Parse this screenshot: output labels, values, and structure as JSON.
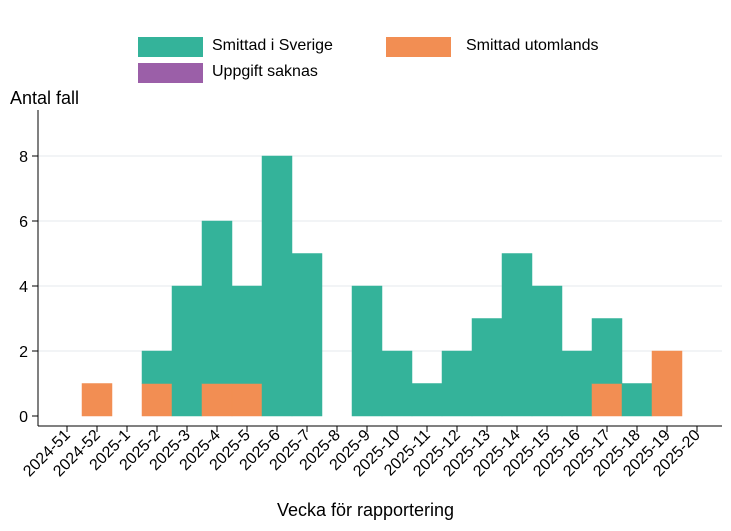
{
  "chart_data": {
    "type": "bar",
    "stacked": true,
    "title": "",
    "xlabel": "Vecka för rapportering",
    "ylabel": "Antal fall",
    "ylim": [
      0,
      9
    ],
    "yticks": [
      0,
      2,
      4,
      6,
      8
    ],
    "grid": true,
    "legend_position": "top",
    "categories": [
      "2024-51",
      "2024-52",
      "2025-1",
      "2025-2",
      "2025-3",
      "2025-4",
      "2025-5",
      "2025-6",
      "2025-7",
      "2025-8",
      "2025-9",
      "2025-10",
      "2025-11",
      "2025-12",
      "2025-13",
      "2025-14",
      "2025-15",
      "2025-16",
      "2025-17",
      "2025-18",
      "2025-19",
      "2025-20"
    ],
    "series": [
      {
        "name": "Smittad utomlands",
        "color": "#f28e53",
        "values": [
          0,
          1,
          0,
          1,
          0,
          1,
          1,
          0,
          0,
          0,
          0,
          0,
          0,
          0,
          0,
          0,
          0,
          0,
          1,
          0,
          2,
          0
        ]
      },
      {
        "name": "Smittad i Sverige",
        "color": "#34b39a",
        "values": [
          0,
          0,
          0,
          1,
          4,
          5,
          3,
          8,
          5,
          0,
          4,
          2,
          1,
          2,
          3,
          5,
          4,
          2,
          2,
          1,
          0,
          0
        ]
      },
      {
        "name": "Uppgift saknas",
        "color": "#9b5fa8",
        "values": [
          0,
          0,
          0,
          0,
          0,
          0,
          0,
          0,
          0,
          0,
          0,
          0,
          0,
          0,
          0,
          0,
          0,
          0,
          0,
          0,
          0,
          0
        ]
      }
    ]
  },
  "legend": {
    "items": [
      {
        "label": "Smittad i Sverige",
        "color": "#34b39a"
      },
      {
        "label": "Smittad utomlands",
        "color": "#f28e53"
      },
      {
        "label": "Uppgift saknas",
        "color": "#9b5fa8"
      }
    ]
  }
}
